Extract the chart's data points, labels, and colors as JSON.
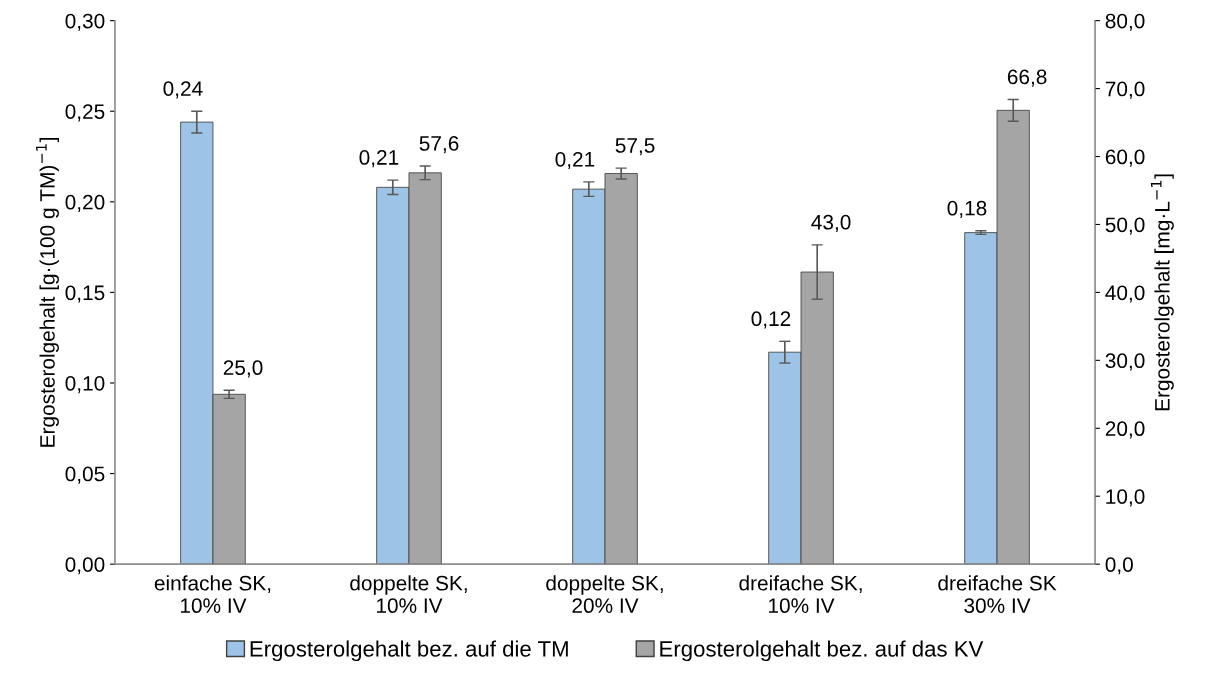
{
  "chart_data": {
    "type": "bar",
    "ylabel": "Ergosterolgehalt [g·(100 g TM)$^{−1}$]",
    "y2label": "Ergosterolgehalt [mg·L$^{−1}$]",
    "categories": [
      "einfache SK,\n10% IV",
      "doppelte SK,\n10% IV",
      "doppelte SK,\n20% IV",
      "dreifache SK,\n10% IV",
      "dreifache SK\n30% IV"
    ],
    "series": [
      {
        "name": "Ergosterolgehalt bez. auf die TM",
        "color": "#9dc3e6",
        "values": [
          0.244,
          0.208,
          0.207,
          0.117,
          0.183
        ],
        "errors": [
          0.006,
          0.004,
          0.004,
          0.006,
          0.001
        ],
        "value_labels": [
          "0,24",
          "0,21",
          "0,21",
          "0,12",
          "0,18"
        ]
      },
      {
        "name": "Ergosterolgehalt bez. auf das KV",
        "color": "#a5a5a5",
        "axis": "y2",
        "values": [
          25.0,
          57.6,
          57.5,
          43.0,
          66.8
        ],
        "errors": [
          0.6,
          1.0,
          0.8,
          4.0,
          1.6
        ],
        "value_labels": [
          "25,0",
          "57,6",
          "57,5",
          "43,0",
          "66,8"
        ]
      }
    ],
    "ylim": [
      0,
      0.3
    ],
    "yticks": [
      {
        "value": 0,
        "label": "0,00"
      },
      {
        "value": 0.05,
        "label": "0,05"
      },
      {
        "value": 0.1,
        "label": "0,10"
      },
      {
        "value": 0.15,
        "label": "0,15"
      },
      {
        "value": 0.2,
        "label": "0,20"
      },
      {
        "value": 0.25,
        "label": "0,25"
      },
      {
        "value": 0.3,
        "label": "0,30"
      }
    ],
    "y2lim": [
      0,
      80
    ],
    "y2ticks": [
      {
        "value": 0,
        "label": "0,0"
      },
      {
        "value": 10,
        "label": "10,0"
      },
      {
        "value": 20,
        "label": "20,0"
      },
      {
        "value": 30,
        "label": "30,0"
      },
      {
        "value": 40,
        "label": "40,0"
      },
      {
        "value": 50,
        "label": "50,0"
      },
      {
        "value": 60,
        "label": "60,0"
      },
      {
        "value": 70,
        "label": "70,0"
      },
      {
        "value": 80,
        "label": "80,0"
      }
    ],
    "grid": false,
    "legend": "bottom"
  }
}
